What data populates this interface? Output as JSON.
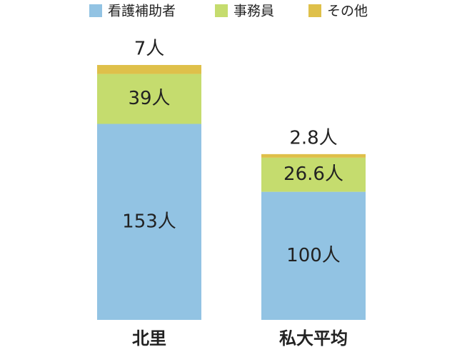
{
  "chart_data": {
    "type": "stacked-bar",
    "categories": [
      "北里",
      "私大平均"
    ],
    "series": [
      {
        "name": "看護補助者",
        "color": "#92c3e3",
        "values": [
          153,
          100
        ],
        "value_labels": [
          "153人",
          "100人"
        ]
      },
      {
        "name": "事務員",
        "color": "#c5dc6e",
        "values": [
          39,
          26.6
        ],
        "value_labels": [
          "39人",
          "26.6人"
        ]
      },
      {
        "name": "その他",
        "color": "#dfc04a",
        "values": [
          7,
          2.8
        ],
        "value_labels": [
          "7人",
          "2.8人"
        ]
      }
    ]
  }
}
